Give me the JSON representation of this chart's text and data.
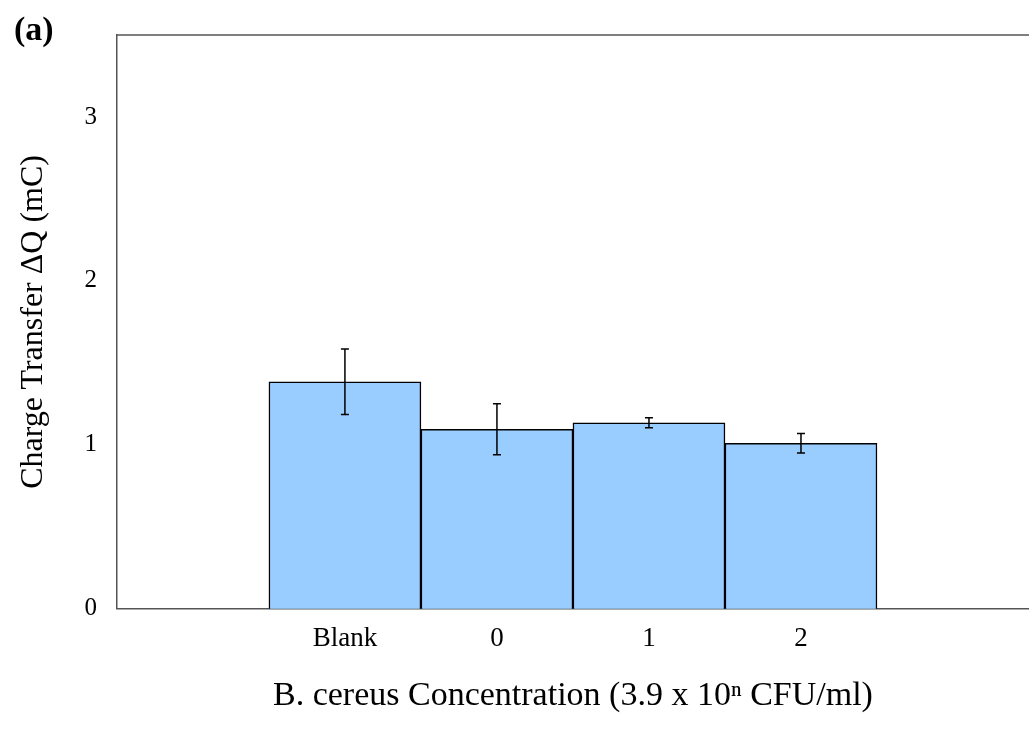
{
  "chart_data": {
    "type": "bar",
    "annotations": [
      "(a)"
    ],
    "xlabel": "B. cereus Concentration (3.9 x 10ⁿ CFU/ml)",
    "ylabel": "Charge Transfer ΔQ (mC)",
    "categories": [
      null,
      "Blank",
      "0",
      "1",
      "2",
      null
    ],
    "values": [
      null,
      1.385,
      1.095,
      1.135,
      1.01,
      null
    ],
    "errors": [
      null,
      0.2,
      0.155,
      0.03,
      0.06,
      null
    ],
    "color": "#99ccff",
    "ylim": [
      0,
      3.5
    ],
    "yticks": [
      0,
      1,
      2,
      3
    ],
    "grid": false,
    "legend": false
  }
}
